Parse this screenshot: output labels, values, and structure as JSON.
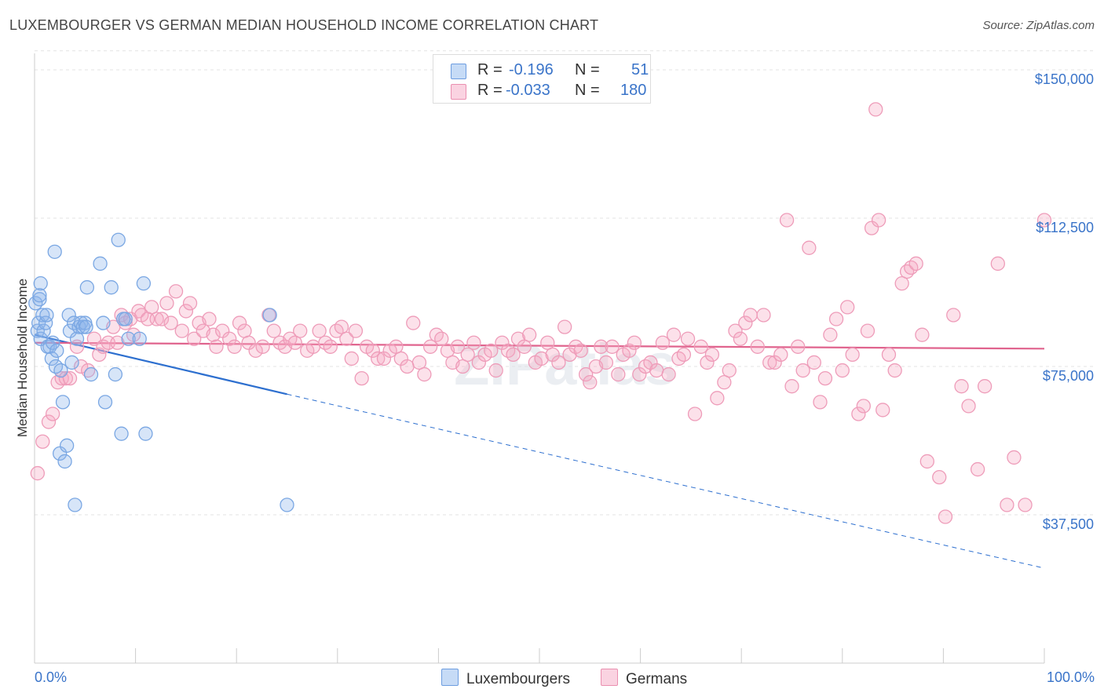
{
  "title": "LUXEMBOURGER VS GERMAN MEDIAN HOUSEHOLD INCOME CORRELATION CHART",
  "source": "Source: ZipAtlas.com",
  "watermark": "ZIPatlas",
  "legend": {
    "rows": [
      {
        "r_label": "R =",
        "r_value": "-0.196",
        "n_label": "N =",
        "n_value": "51",
        "color": "#a9c8f0",
        "border": "#6d9de0"
      },
      {
        "r_label": "R =",
        "r_value": "-0.033",
        "n_label": "N =",
        "n_value": "180",
        "color": "#f8c4d6",
        "border": "#ea8fb0"
      }
    ]
  },
  "colors": {
    "blue_fill": "rgba(140,180,235,0.35)",
    "blue_stroke": "#7aa7e3",
    "blue_line": "#2d6fcf",
    "pink_fill": "rgba(245,170,195,0.35)",
    "pink_stroke": "#ee9cb9",
    "pink_line": "#e0648e",
    "tick_label": "#3a74c9"
  },
  "chart_data": {
    "type": "scatter",
    "title": "LUXEMBOURGER VS GERMAN MEDIAN HOUSEHOLD INCOME CORRELATION CHART",
    "xlabel": "",
    "ylabel": "Median Household Income",
    "x_tick_labels": [
      "0.0%",
      "100.0%"
    ],
    "xlim": [
      0,
      100
    ],
    "ylim": [
      0,
      155000
    ],
    "y_ticks": [
      37500,
      75000,
      112500,
      150000
    ],
    "y_tick_labels": [
      "$37,500",
      "$75,000",
      "$112,500",
      "$150,000"
    ],
    "grid": "horizontal dashed",
    "legend_position": "top-center",
    "series": [
      {
        "name": "Luxembourgers",
        "trend": {
          "x": [
            0,
            25,
            100
          ],
          "y": [
            83000,
            68000,
            24000
          ],
          "solid_until": 25
        },
        "points": [
          [
            0.1,
            91000
          ],
          [
            0.3,
            84000
          ],
          [
            0.4,
            86000
          ],
          [
            0.5,
            92000
          ],
          [
            0.6,
            96000
          ],
          [
            0.6,
            82000
          ],
          [
            0.8,
            88000
          ],
          [
            0.9,
            84000
          ],
          [
            1.1,
            86000
          ],
          [
            1.2,
            88000
          ],
          [
            1.3,
            80000
          ],
          [
            1.5,
            80000
          ],
          [
            1.7,
            77000
          ],
          [
            1.8,
            81000
          ],
          [
            2.0,
            104000
          ],
          [
            2.1,
            75000
          ],
          [
            2.2,
            79000
          ],
          [
            2.5,
            53000
          ],
          [
            2.6,
            74000
          ],
          [
            2.8,
            66000
          ],
          [
            3.0,
            51000
          ],
          [
            3.2,
            55000
          ],
          [
            3.4,
            88000
          ],
          [
            3.5,
            84000
          ],
          [
            3.7,
            76000
          ],
          [
            3.9,
            86000
          ],
          [
            4.0,
            40000
          ],
          [
            4.2,
            82000
          ],
          [
            4.4,
            85000
          ],
          [
            4.6,
            86000
          ],
          [
            4.8,
            85000
          ],
          [
            5.0,
            86000
          ],
          [
            5.1,
            85000
          ],
          [
            5.2,
            95000
          ],
          [
            5.6,
            73000
          ],
          [
            6.5,
            101000
          ],
          [
            6.8,
            86000
          ],
          [
            7.0,
            66000
          ],
          [
            7.6,
            95000
          ],
          [
            8.0,
            73000
          ],
          [
            8.3,
            107000
          ],
          [
            8.6,
            58000
          ],
          [
            8.8,
            87000
          ],
          [
            9.0,
            87000
          ],
          [
            9.3,
            82000
          ],
          [
            10.4,
            82000
          ],
          [
            10.8,
            96000
          ],
          [
            11.0,
            58000
          ],
          [
            23.3,
            88000
          ],
          [
            25.0,
            40000
          ],
          [
            0.5,
            93000
          ]
        ]
      },
      {
        "name": "Germans",
        "trend": {
          "x": [
            0,
            100
          ],
          "y": [
            81000,
            79500
          ]
        },
        "points": [
          [
            0.3,
            48000
          ],
          [
            0.8,
            56000
          ],
          [
            1.4,
            61000
          ],
          [
            1.8,
            63000
          ],
          [
            2.3,
            71000
          ],
          [
            2.7,
            72000
          ],
          [
            3.1,
            72000
          ],
          [
            3.5,
            72000
          ],
          [
            4.2,
            80000
          ],
          [
            4.6,
            75000
          ],
          [
            5.3,
            74000
          ],
          [
            5.9,
            82000
          ],
          [
            6.4,
            78000
          ],
          [
            6.8,
            80000
          ],
          [
            7.3,
            81000
          ],
          [
            7.8,
            85000
          ],
          [
            8.2,
            81000
          ],
          [
            8.6,
            88000
          ],
          [
            9.0,
            86000
          ],
          [
            9.5,
            87000
          ],
          [
            9.8,
            83000
          ],
          [
            10.3,
            89000
          ],
          [
            10.6,
            88000
          ],
          [
            11.2,
            87000
          ],
          [
            11.6,
            90000
          ],
          [
            12.1,
            87000
          ],
          [
            12.6,
            87000
          ],
          [
            13.1,
            91000
          ],
          [
            13.5,
            86000
          ],
          [
            14.0,
            94000
          ],
          [
            14.6,
            84000
          ],
          [
            15.0,
            89000
          ],
          [
            15.4,
            91000
          ],
          [
            15.8,
            82000
          ],
          [
            16.3,
            86000
          ],
          [
            16.7,
            84000
          ],
          [
            17.3,
            87000
          ],
          [
            17.7,
            83000
          ],
          [
            18.0,
            80000
          ],
          [
            18.6,
            84000
          ],
          [
            19.3,
            82000
          ],
          [
            19.8,
            80000
          ],
          [
            20.3,
            86000
          ],
          [
            20.8,
            84000
          ],
          [
            21.2,
            81000
          ],
          [
            21.9,
            79000
          ],
          [
            22.6,
            80000
          ],
          [
            23.2,
            88000
          ],
          [
            23.7,
            84000
          ],
          [
            24.3,
            81000
          ],
          [
            24.8,
            80000
          ],
          [
            25.3,
            82000
          ],
          [
            25.8,
            81000
          ],
          [
            26.3,
            84000
          ],
          [
            27.0,
            79000
          ],
          [
            27.6,
            80000
          ],
          [
            28.2,
            84000
          ],
          [
            28.8,
            81000
          ],
          [
            29.3,
            80000
          ],
          [
            29.9,
            84000
          ],
          [
            30.4,
            85000
          ],
          [
            30.9,
            82000
          ],
          [
            31.4,
            77000
          ],
          [
            31.8,
            84000
          ],
          [
            32.4,
            72000
          ],
          [
            32.9,
            80000
          ],
          [
            33.5,
            79000
          ],
          [
            34.0,
            77000
          ],
          [
            34.6,
            77000
          ],
          [
            35.2,
            79000
          ],
          [
            35.8,
            80000
          ],
          [
            36.3,
            77000
          ],
          [
            36.9,
            75000
          ],
          [
            37.5,
            86000
          ],
          [
            38.1,
            76000
          ],
          [
            38.6,
            73000
          ],
          [
            39.2,
            80000
          ],
          [
            39.8,
            83000
          ],
          [
            40.3,
            82000
          ],
          [
            40.9,
            79000
          ],
          [
            41.4,
            76000
          ],
          [
            41.9,
            80000
          ],
          [
            42.4,
            75000
          ],
          [
            42.9,
            78000
          ],
          [
            43.5,
            81000
          ],
          [
            44.0,
            76000
          ],
          [
            44.6,
            78000
          ],
          [
            45.2,
            79000
          ],
          [
            45.7,
            74000
          ],
          [
            46.3,
            81000
          ],
          [
            46.9,
            79000
          ],
          [
            47.4,
            78000
          ],
          [
            47.9,
            82000
          ],
          [
            48.5,
            80000
          ],
          [
            49.0,
            83000
          ],
          [
            49.6,
            76000
          ],
          [
            50.2,
            77000
          ],
          [
            50.8,
            81000
          ],
          [
            51.3,
            78000
          ],
          [
            51.9,
            76000
          ],
          [
            52.5,
            85000
          ],
          [
            53.0,
            78000
          ],
          [
            53.6,
            80000
          ],
          [
            54.1,
            79000
          ],
          [
            54.6,
            73000
          ],
          [
            55.0,
            71000
          ],
          [
            55.6,
            75000
          ],
          [
            56.1,
            80000
          ],
          [
            56.6,
            76000
          ],
          [
            57.2,
            80000
          ],
          [
            57.8,
            73000
          ],
          [
            58.3,
            78000
          ],
          [
            58.9,
            79000
          ],
          [
            59.4,
            81000
          ],
          [
            59.9,
            73000
          ],
          [
            60.5,
            75000
          ],
          [
            61.0,
            76000
          ],
          [
            61.6,
            74000
          ],
          [
            62.2,
            81000
          ],
          [
            62.8,
            73000
          ],
          [
            63.3,
            83000
          ],
          [
            63.8,
            77000
          ],
          [
            64.3,
            78000
          ],
          [
            64.7,
            82000
          ],
          [
            65.4,
            63000
          ],
          [
            66.0,
            80000
          ],
          [
            66.6,
            76000
          ],
          [
            67.1,
            78000
          ],
          [
            67.6,
            67000
          ],
          [
            68.3,
            71000
          ],
          [
            68.8,
            74000
          ],
          [
            69.4,
            84000
          ],
          [
            69.9,
            82000
          ],
          [
            70.4,
            86000
          ],
          [
            70.9,
            88000
          ],
          [
            71.6,
            80000
          ],
          [
            72.2,
            88000
          ],
          [
            72.8,
            76000
          ],
          [
            73.3,
            76000
          ],
          [
            73.9,
            78000
          ],
          [
            74.5,
            112000
          ],
          [
            75.0,
            70000
          ],
          [
            75.6,
            80000
          ],
          [
            76.1,
            74000
          ],
          [
            76.7,
            105000
          ],
          [
            77.2,
            76000
          ],
          [
            77.8,
            66000
          ],
          [
            78.3,
            72000
          ],
          [
            78.8,
            83000
          ],
          [
            79.4,
            87000
          ],
          [
            80.0,
            74000
          ],
          [
            80.5,
            90000
          ],
          [
            81.0,
            78000
          ],
          [
            81.6,
            63000
          ],
          [
            82.1,
            65000
          ],
          [
            82.5,
            84000
          ],
          [
            82.9,
            110000
          ],
          [
            83.3,
            140000
          ],
          [
            83.6,
            112000
          ],
          [
            84.0,
            64000
          ],
          [
            84.6,
            78000
          ],
          [
            85.2,
            74000
          ],
          [
            85.9,
            96000
          ],
          [
            86.4,
            99000
          ],
          [
            86.8,
            100000
          ],
          [
            87.3,
            101000
          ],
          [
            87.9,
            83000
          ],
          [
            88.4,
            51000
          ],
          [
            89.6,
            47000
          ],
          [
            90.2,
            37000
          ],
          [
            91.0,
            88000
          ],
          [
            91.8,
            70000
          ],
          [
            92.5,
            65000
          ],
          [
            93.4,
            49000
          ],
          [
            94.1,
            70000
          ],
          [
            95.4,
            101000
          ],
          [
            96.3,
            40000
          ],
          [
            97.0,
            52000
          ],
          [
            98.1,
            40000
          ],
          [
            100.0,
            112000
          ]
        ]
      }
    ]
  }
}
